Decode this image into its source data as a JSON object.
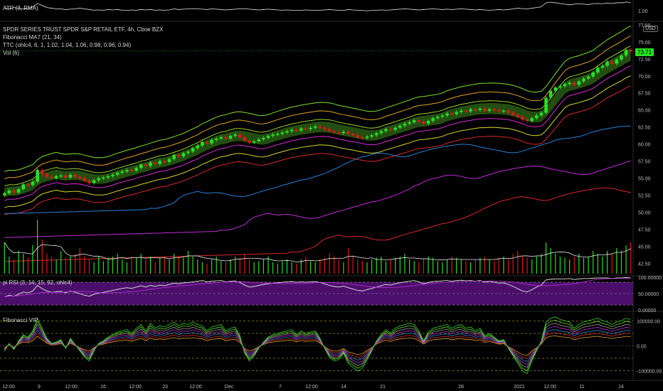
{
  "legend": {
    "atr": "ATR (3, RMA)",
    "title": "SPDR SERIES TRUST SPDR S&P RETAIL ETF, 4h, Cboe BZX",
    "fib_ma": "Fibonacci MA7 (21, 34)",
    "ttc": "TTC (ohlc4, 6, 1, 1.02, 1.04, 1.06, 0.98, 0.96, 0.94)",
    "vol": "Vol (6)",
    "rsi": "pi RSI (3, 14, 15, 92, ohlc4)",
    "vip": "Fibonacci VIP"
  },
  "currency_button": "USD",
  "last_price_tag": "73.71",
  "colors": {
    "up": "#26e026",
    "down": "#e01818",
    "rsi_band": "#4b0f6b",
    "ttc_fill": "#2a5a14",
    "bg": "#000000"
  },
  "axes": {
    "atr_label": "1.00",
    "price_labels": [
      "77.50",
      "75.00",
      "72.50",
      "70.00",
      "67.50",
      "65.00",
      "62.50",
      "60.00",
      "57.50",
      "55.00",
      "52.50",
      "50.00",
      "47.50",
      "45.00",
      "42.50"
    ],
    "rsi_labels": [
      "100.00000",
      "50.00000",
      "0.00000"
    ],
    "vip_labels": [
      "100000.00",
      "0.00",
      "-100000.00"
    ],
    "time_labels": [
      "12:00",
      "9",
      "12:00",
      "16",
      "12:00",
      "23",
      "12:00",
      "Dec",
      "7",
      "12:00",
      "14",
      "21",
      "28",
      "2021",
      "12:00",
      "11",
      "14"
    ]
  },
  "chart_data": {
    "type": "candlestick",
    "title": "SPDR SERIES TRUST SPDR S&P RETAIL ETF, 4h, Cboe BZX",
    "ylim": [
      41,
      78
    ],
    "last_price": 73.71,
    "close": [
      52.8,
      53.2,
      52.9,
      53.4,
      54.1,
      54.0,
      54.5,
      56.2,
      55.6,
      55.2,
      55.0,
      55.3,
      55.4,
      55.1,
      55.5,
      55.2,
      55.0,
      54.6,
      54.3,
      54.7,
      55.0,
      55.1,
      55.3,
      55.5,
      55.8,
      56.0,
      56.2,
      56.1,
      56.5,
      57.0,
      56.8,
      57.3,
      57.1,
      57.5,
      57.4,
      57.8,
      58.4,
      58.2,
      58.7,
      58.9,
      59.4,
      59.8,
      60.3,
      60.1,
      60.6,
      60.8,
      61.0,
      60.8,
      61.2,
      61.4,
      61.0,
      60.5,
      60.2,
      60.4,
      60.7,
      60.9,
      61.2,
      61.4,
      61.5,
      61.7,
      61.9,
      62.1,
      62.0,
      62.3,
      62.2,
      62.4,
      62.6,
      62.4,
      62.2,
      61.9,
      61.7,
      61.6,
      61.8,
      61.5,
      61.3,
      61.0,
      60.9,
      61.1,
      61.3,
      61.6,
      61.9,
      62.2,
      62.1,
      62.4,
      62.7,
      63.0,
      63.2,
      63.5,
      63.3,
      63.0,
      63.4,
      63.8,
      64.0,
      64.2,
      64.5,
      64.4,
      64.7,
      64.9,
      64.8,
      65.1,
      65.0,
      65.2,
      64.9,
      65.1,
      65.0,
      64.8,
      64.9,
      64.6,
      64.3,
      64.0,
      63.6,
      63.4,
      63.8,
      64.2,
      64.6,
      66.8,
      67.8,
      68.3,
      68.5,
      68.8,
      69.0,
      68.7,
      69.2,
      69.6,
      69.9,
      70.5,
      71.2,
      71.5,
      72.1,
      71.8,
      72.4,
      73.0,
      73.8,
      73.7
    ],
    "volume": [
      0.55,
      0.3,
      0.25,
      0.4,
      0.35,
      0.28,
      0.5,
      0.95,
      0.6,
      0.35,
      0.3,
      0.25,
      0.4,
      0.28,
      0.3,
      0.35,
      0.45,
      0.3,
      0.25,
      0.2,
      0.3,
      0.22,
      0.28,
      0.3,
      0.35,
      0.25,
      0.2,
      0.3,
      0.28,
      0.35,
      0.25,
      0.3,
      0.2,
      0.28,
      0.3,
      0.25,
      0.35,
      0.3,
      0.28,
      0.4,
      0.3,
      0.25,
      0.2,
      0.18,
      0.25,
      0.3,
      0.22,
      0.2,
      0.25,
      0.3,
      0.28,
      0.35,
      0.25,
      0.2,
      0.22,
      0.25,
      0.3,
      0.2,
      0.18,
      0.22,
      0.25,
      0.2,
      0.18,
      0.25,
      0.3,
      0.22,
      0.2,
      0.25,
      0.28,
      0.35,
      0.3,
      0.25,
      0.2,
      0.45,
      0.3,
      0.25,
      0.22,
      0.2,
      0.25,
      0.28,
      0.3,
      0.22,
      0.25,
      0.28,
      0.3,
      0.35,
      0.25,
      0.22,
      0.2,
      0.25,
      0.3,
      0.28,
      0.22,
      0.2,
      0.25,
      0.3,
      0.28,
      0.25,
      0.22,
      0.2,
      0.25,
      0.28,
      0.3,
      0.25,
      0.22,
      0.28,
      0.3,
      0.25,
      0.35,
      0.4,
      0.3,
      0.28,
      0.25,
      0.3,
      0.35,
      0.55,
      0.45,
      0.35,
      0.3,
      0.28,
      0.25,
      0.3,
      0.35,
      0.28,
      0.3,
      0.4,
      0.35,
      0.3,
      0.4,
      0.35,
      0.45,
      0.4,
      0.5,
      0.55
    ],
    "atr": [
      0.55,
      0.5,
      0.6,
      0.55,
      0.5,
      0.52,
      0.65,
      0.9,
      0.75,
      0.6,
      0.55,
      0.5,
      0.5,
      0.45,
      0.48,
      0.5,
      0.55,
      0.5,
      0.45,
      0.4,
      0.42,
      0.4,
      0.45,
      0.42,
      0.45,
      0.4,
      0.38,
      0.42,
      0.4,
      0.45,
      0.42,
      0.45,
      0.4,
      0.42,
      0.4,
      0.42,
      0.5,
      0.45,
      0.48,
      0.5,
      0.52,
      0.5,
      0.48,
      0.45,
      0.5,
      0.48,
      0.45,
      0.42,
      0.45,
      0.48,
      0.5,
      0.52,
      0.48,
      0.45,
      0.42,
      0.45,
      0.48,
      0.45,
      0.42,
      0.4,
      0.42,
      0.4,
      0.38,
      0.4,
      0.42,
      0.4,
      0.38,
      0.4,
      0.42,
      0.45,
      0.42,
      0.4,
      0.38,
      0.45,
      0.42,
      0.4,
      0.38,
      0.36,
      0.38,
      0.4,
      0.42,
      0.4,
      0.42,
      0.45,
      0.48,
      0.5,
      0.48,
      0.45,
      0.42,
      0.45,
      0.48,
      0.5,
      0.48,
      0.45,
      0.48,
      0.45,
      0.48,
      0.5,
      0.48,
      0.45,
      0.42,
      0.45,
      0.42,
      0.4,
      0.42,
      0.45,
      0.42,
      0.45,
      0.5,
      0.55,
      0.52,
      0.5,
      0.55,
      0.6,
      0.65,
      0.95,
      1.0,
      0.95,
      0.9,
      0.85,
      0.8,
      0.85,
      0.88,
      0.85,
      0.82,
      0.88,
      0.9,
      0.88,
      0.92,
      0.9,
      0.95,
      0.95,
      1.0,
      0.98
    ],
    "rsi": [
      40,
      45,
      42,
      48,
      55,
      52,
      58,
      75,
      65,
      58,
      54,
      56,
      57,
      52,
      58,
      54,
      50,
      45,
      42,
      48,
      52,
      54,
      57,
      60,
      63,
      66,
      68,
      66,
      70,
      74,
      70,
      75,
      72,
      76,
      74,
      78,
      82,
      80,
      83,
      84,
      86,
      88,
      90,
      86,
      88,
      89,
      90,
      86,
      88,
      89,
      84,
      76,
      70,
      72,
      75,
      78,
      80,
      82,
      83,
      85,
      86,
      87,
      85,
      86,
      85,
      86,
      87,
      84,
      80,
      75,
      72,
      70,
      73,
      68,
      64,
      60,
      58,
      62,
      66,
      70,
      74,
      78,
      76,
      80,
      83,
      86,
      88,
      90,
      86,
      80,
      84,
      87,
      88,
      89,
      90,
      88,
      90,
      91,
      89,
      90,
      88,
      90,
      85,
      87,
      85,
      82,
      83,
      78,
      72,
      65,
      58,
      55,
      62,
      70,
      76,
      92,
      94,
      95,
      95,
      95,
      96,
      93,
      95,
      96,
      96,
      97,
      98,
      98,
      98,
      96,
      98,
      98,
      99,
      98
    ],
    "vip": [
      -20,
      10,
      -15,
      20,
      45,
      35,
      60,
      110,
      70,
      30,
      10,
      15,
      25,
      -10,
      30,
      5,
      -20,
      -45,
      -60,
      -20,
      10,
      20,
      35,
      45,
      55,
      60,
      65,
      50,
      70,
      85,
      60,
      90,
      70,
      80,
      75,
      85,
      95,
      80,
      90,
      85,
      95,
      85,
      80,
      60,
      75,
      80,
      85,
      60,
      70,
      75,
      40,
      -30,
      -60,
      -40,
      -10,
      15,
      35,
      45,
      50,
      55,
      60,
      65,
      45,
      60,
      50,
      55,
      60,
      30,
      -10,
      -45,
      -60,
      -55,
      -30,
      -70,
      -85,
      -100,
      -90,
      -55,
      -20,
      20,
      45,
      65,
      50,
      70,
      80,
      85,
      90,
      85,
      60,
      20,
      55,
      70,
      75,
      80,
      85,
      70,
      80,
      85,
      70,
      75,
      60,
      70,
      40,
      50,
      35,
      20,
      25,
      -10,
      -40,
      -70,
      -100,
      -110,
      -60,
      -20,
      20,
      95,
      110,
      115,
      105,
      100,
      95,
      70,
      85,
      95,
      100,
      105,
      110,
      100,
      95,
      85,
      95,
      100,
      110,
      105
    ]
  }
}
